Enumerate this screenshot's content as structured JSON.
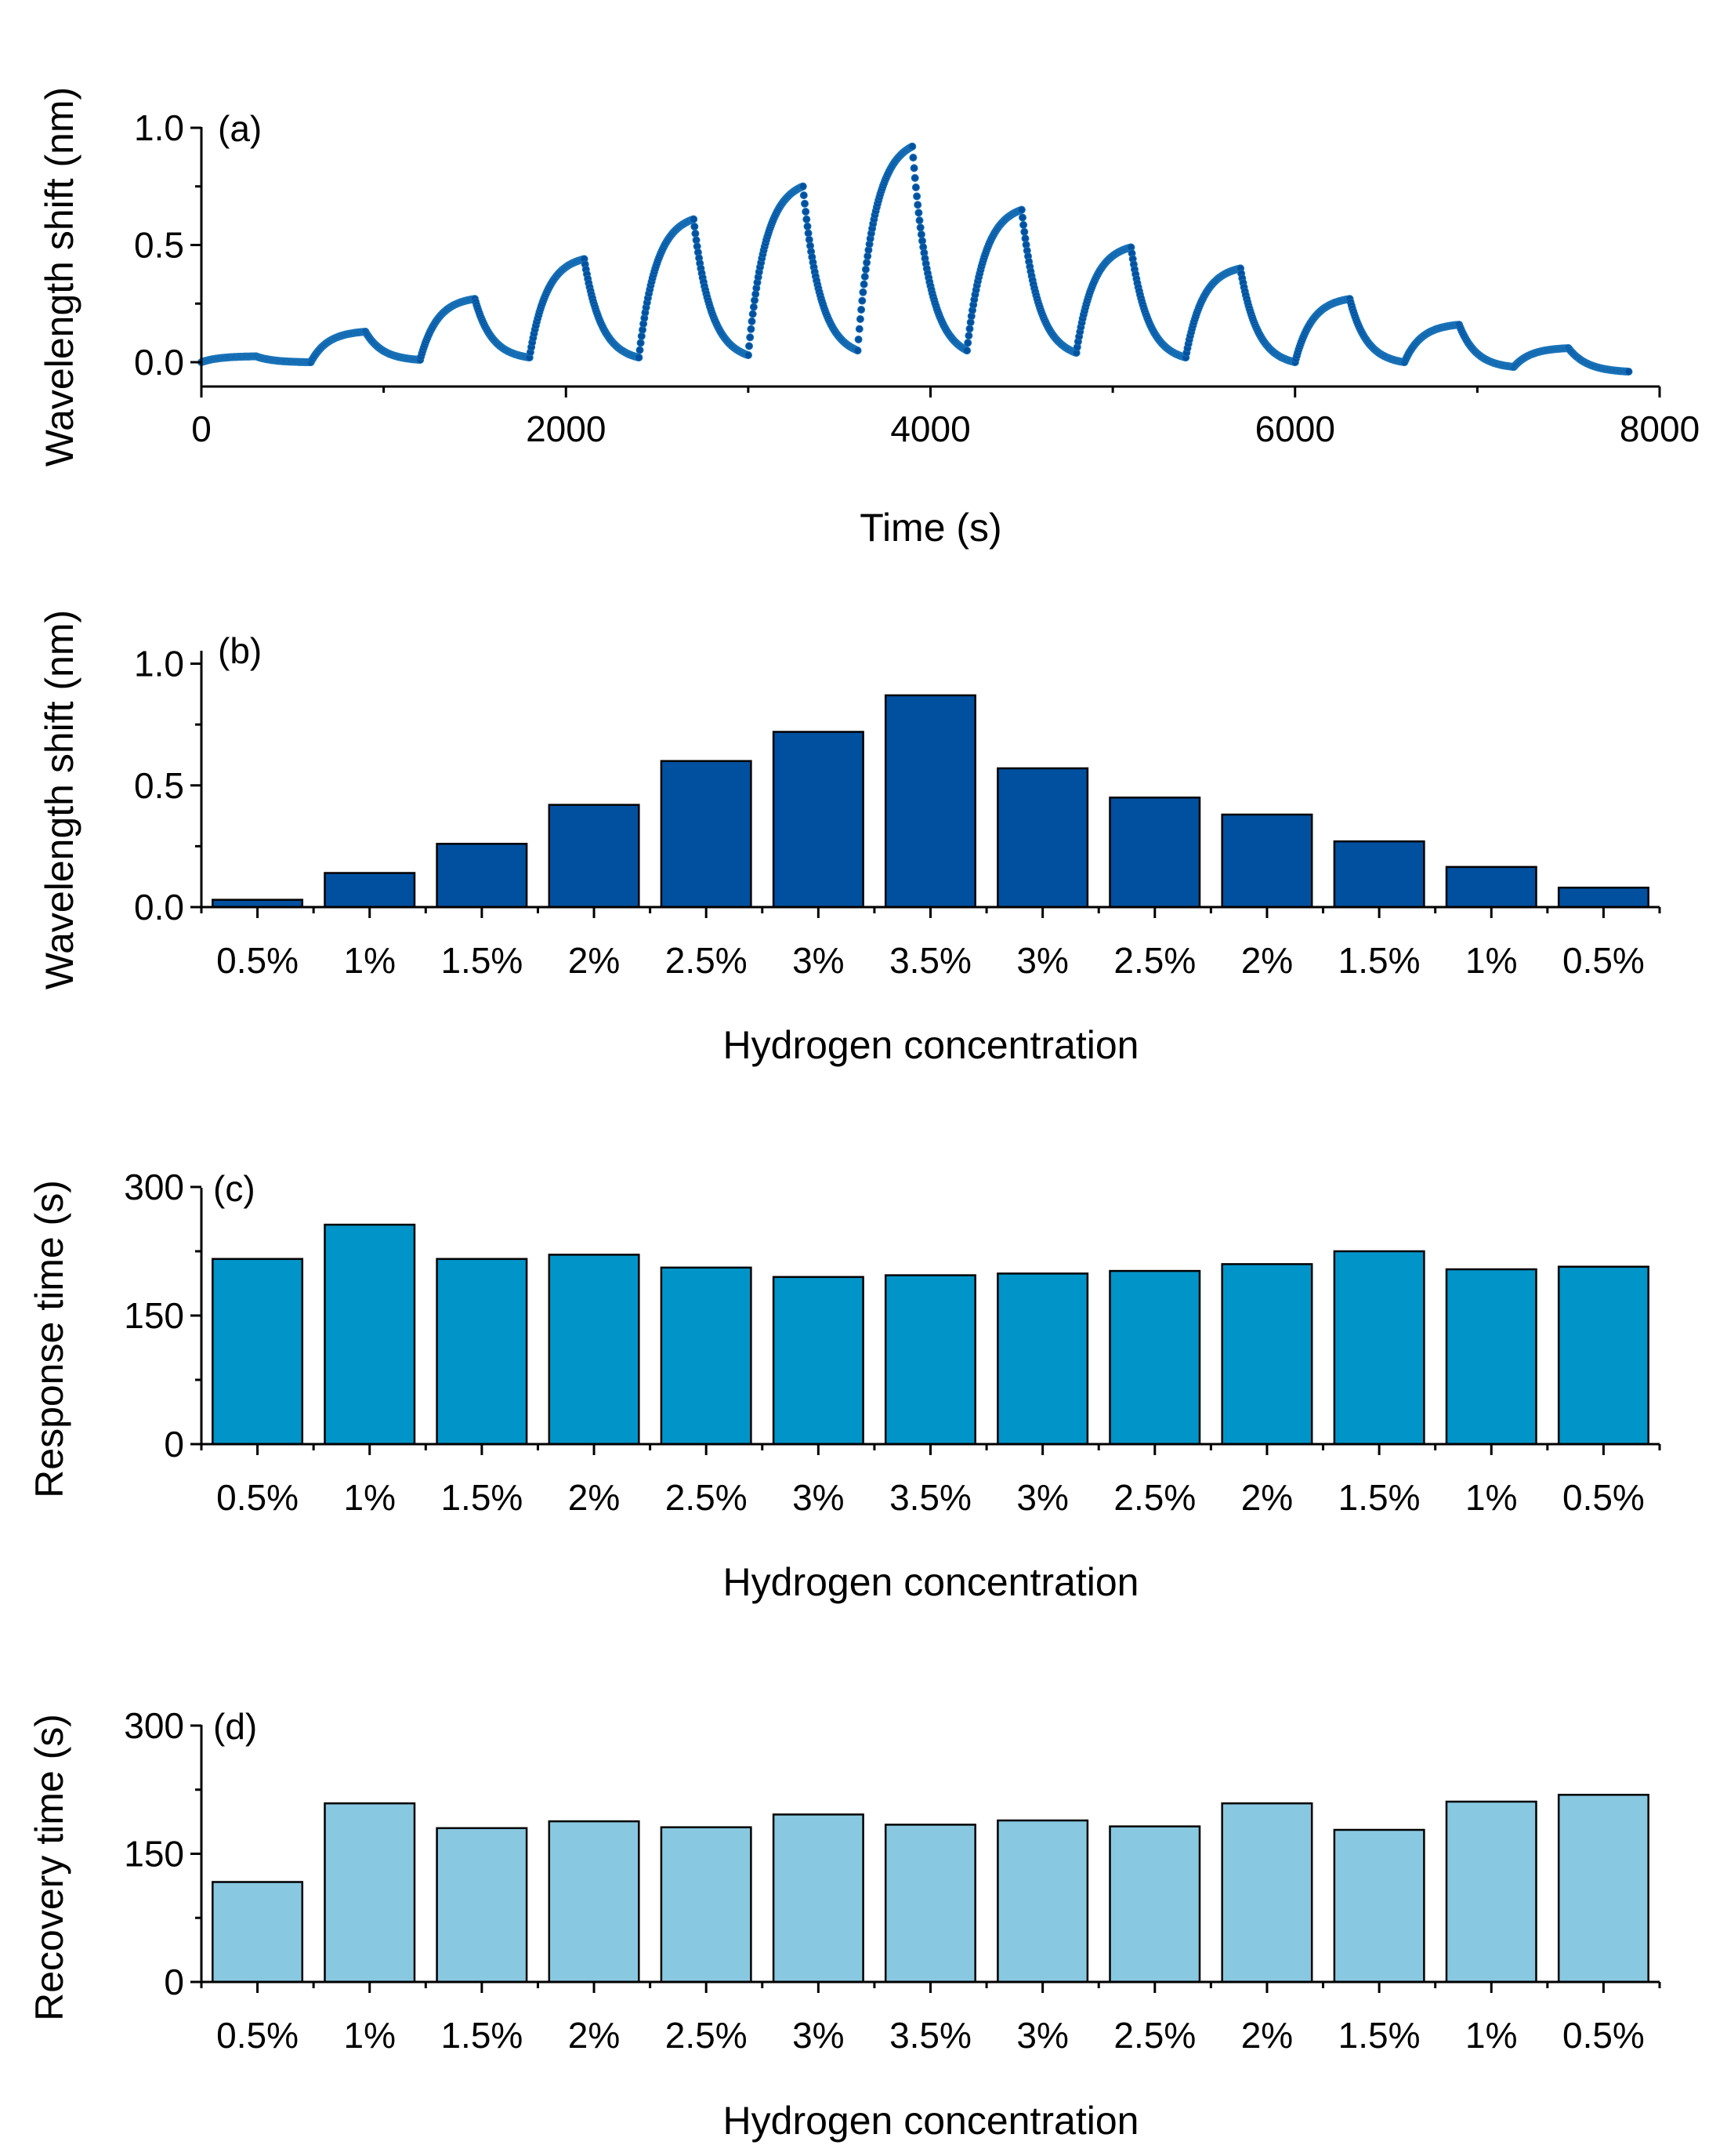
{
  "colors": {
    "wave": "#0050a0",
    "wave_bar": "#0050a0",
    "response_bar": "#0094c8",
    "recovery_bar": "#88c9e1"
  },
  "categories": [
    "0.5%",
    "1%",
    "1.5%",
    "2%",
    "2.5%",
    "3%",
    "3.5%",
    "3%",
    "2.5%",
    "2%",
    "1.5%",
    "1%",
    "0.5%"
  ],
  "chart_data": [
    {
      "id": "a",
      "type": "scatter",
      "panel_label": "(a)",
      "xlabel": "Time (s)",
      "ylabel": "Wavelength shift (nm)",
      "xlim": [
        0,
        8000
      ],
      "ylim": [
        -0.1,
        1.05
      ],
      "xticks": [
        0,
        2000,
        4000,
        6000,
        8000
      ],
      "xtick_labels": [
        "0",
        "2000",
        "4000",
        "6000",
        "8000"
      ],
      "yticks": [
        0,
        0.5,
        1
      ],
      "ytick_labels": [
        "0.0",
        "0.5",
        "1.0"
      ],
      "cycles": [
        {
          "t0": 0,
          "start": 0.0,
          "peak": 0.025,
          "end": 0.0
        },
        {
          "t0": 600,
          "start": 0.0,
          "peak": 0.13,
          "end": 0.01
        },
        {
          "t0": 1200,
          "start": 0.01,
          "peak": 0.27,
          "end": 0.02
        },
        {
          "t0": 1800,
          "start": 0.02,
          "peak": 0.44,
          "end": 0.02
        },
        {
          "t0": 2400,
          "start": 0.02,
          "peak": 0.61,
          "end": 0.03
        },
        {
          "t0": 3000,
          "start": 0.03,
          "peak": 0.75,
          "end": 0.05
        },
        {
          "t0": 3600,
          "start": 0.05,
          "peak": 0.92,
          "end": 0.05
        },
        {
          "t0": 4200,
          "start": 0.05,
          "peak": 0.65,
          "end": 0.04
        },
        {
          "t0": 4800,
          "start": 0.04,
          "peak": 0.49,
          "end": 0.02
        },
        {
          "t0": 5400,
          "start": 0.02,
          "peak": 0.4,
          "end": 0.01
        },
        {
          "t0": 6000,
          "start": 0.0,
          "peak": 0.27,
          "end": 0.0
        },
        {
          "t0": 6600,
          "start": 0.0,
          "peak": 0.16,
          "end": -0.02
        },
        {
          "t0": 7200,
          "start": -0.02,
          "peak": 0.06,
          "end": -0.04
        }
      ],
      "end_time": 7830
    },
    {
      "id": "b",
      "type": "bar",
      "panel_label": "(b)",
      "xlabel": "Hydrogen concentration",
      "ylabel": "Wavelength shift (nm)",
      "ylim": [
        0,
        1.05
      ],
      "yticks": [
        0,
        0.5,
        1
      ],
      "ytick_labels": [
        "0.0",
        "0.5",
        "1.0"
      ],
      "values": [
        0.03,
        0.14,
        0.26,
        0.42,
        0.6,
        0.72,
        0.87,
        0.57,
        0.45,
        0.38,
        0.27,
        0.165,
        0.08
      ]
    },
    {
      "id": "c",
      "type": "bar",
      "panel_label": "(c)",
      "xlabel": "Hydrogen concentration",
      "ylabel": "Response time (s)",
      "ylim": [
        0,
        300
      ],
      "yticks": [
        0,
        150,
        300
      ],
      "ytick_labels": [
        "0",
        "150",
        "300"
      ],
      "values": [
        216,
        256,
        216,
        221,
        206,
        195,
        197,
        199,
        202,
        210,
        225,
        204,
        207
      ]
    },
    {
      "id": "d",
      "type": "bar",
      "panel_label": "(d)",
      "xlabel": "Hydrogen concentration",
      "ylabel": "Recovery time (s)",
      "ylim": [
        0,
        300
      ],
      "yticks": [
        0,
        150,
        300
      ],
      "ytick_labels": [
        "0",
        "150",
        "300"
      ],
      "values": [
        117,
        209,
        180,
        188,
        181,
        196,
        184,
        189,
        182,
        209,
        178,
        211,
        219
      ]
    }
  ]
}
